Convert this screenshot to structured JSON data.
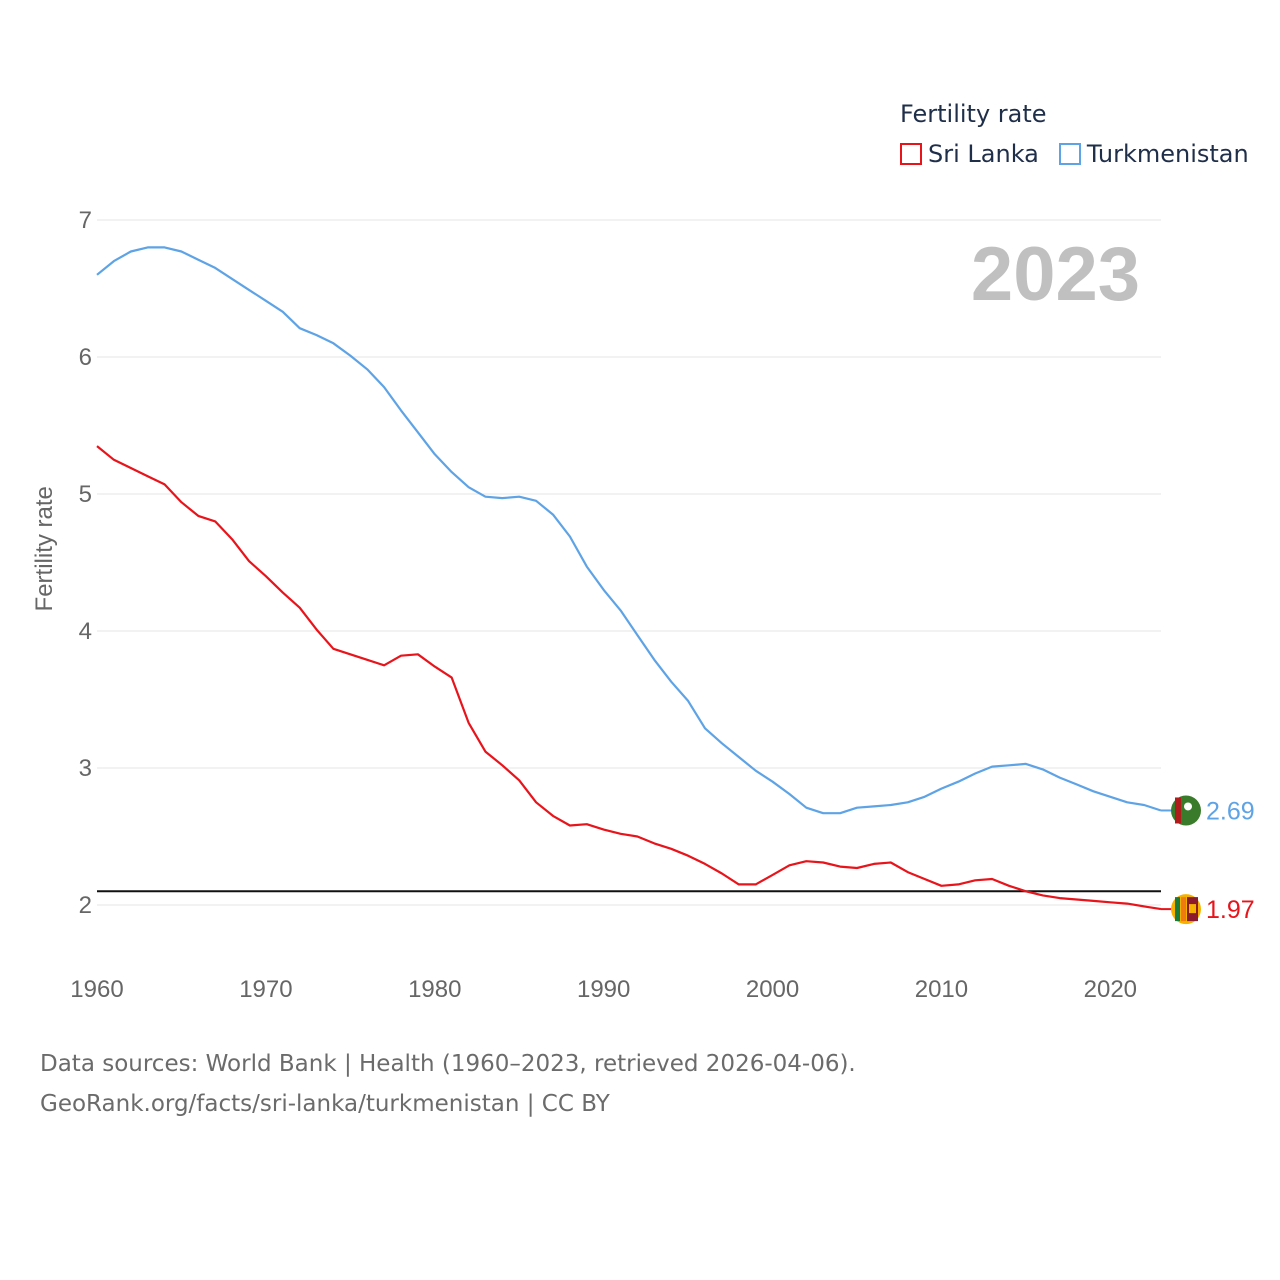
{
  "chart_data": {
    "type": "line",
    "title": "Fertility rate",
    "ylabel": "Fertility rate",
    "xlabel": "",
    "year_label": "2023",
    "xlim": [
      1960,
      2023
    ],
    "ylim": [
      1.5,
      7
    ],
    "x_ticks": [
      1960,
      1970,
      1980,
      1990,
      2000,
      2010,
      2020
    ],
    "y_ticks": [
      2,
      3,
      4,
      5,
      6,
      7
    ],
    "reference_line": 2.1,
    "x": [
      1960,
      1961,
      1962,
      1963,
      1964,
      1965,
      1966,
      1967,
      1968,
      1969,
      1970,
      1971,
      1972,
      1973,
      1974,
      1975,
      1976,
      1977,
      1978,
      1979,
      1980,
      1981,
      1982,
      1983,
      1984,
      1985,
      1986,
      1987,
      1988,
      1989,
      1990,
      1991,
      1992,
      1993,
      1994,
      1995,
      1996,
      1997,
      1998,
      1999,
      2000,
      2001,
      2002,
      2003,
      2004,
      2005,
      2006,
      2007,
      2008,
      2009,
      2010,
      2011,
      2012,
      2013,
      2014,
      2015,
      2016,
      2017,
      2018,
      2019,
      2020,
      2021,
      2022,
      2023
    ],
    "series": [
      {
        "name": "Sri Lanka",
        "color": "#e8141b",
        "end_label": "1.97",
        "flag": "sri-lanka-flag",
        "values": [
          5.35,
          5.25,
          5.19,
          5.13,
          5.07,
          4.94,
          4.84,
          4.8,
          4.67,
          4.51,
          4.4,
          4.28,
          4.17,
          4.01,
          3.87,
          3.83,
          3.79,
          3.75,
          3.82,
          3.83,
          3.74,
          3.66,
          3.33,
          3.12,
          3.02,
          2.91,
          2.75,
          2.65,
          2.58,
          2.59,
          2.55,
          2.52,
          2.5,
          2.45,
          2.41,
          2.36,
          2.3,
          2.23,
          2.15,
          2.15,
          2.22,
          2.29,
          2.32,
          2.31,
          2.28,
          2.27,
          2.3,
          2.31,
          2.24,
          2.19,
          2.14,
          2.15,
          2.18,
          2.19,
          2.14,
          2.1,
          2.07,
          2.05,
          2.04,
          2.03,
          2.02,
          2.01,
          1.99,
          1.97
        ]
      },
      {
        "name": "Turkmenistan",
        "color": "#5ea3e5",
        "end_label": "2.69",
        "flag": "turkmenistan-flag",
        "values": [
          6.6,
          6.7,
          6.77,
          6.8,
          6.8,
          6.77,
          6.71,
          6.65,
          6.57,
          6.49,
          6.41,
          6.33,
          6.21,
          6.16,
          6.1,
          6.01,
          5.91,
          5.78,
          5.61,
          5.45,
          5.29,
          5.16,
          5.05,
          4.98,
          4.97,
          4.98,
          4.95,
          4.85,
          4.69,
          4.47,
          4.3,
          4.15,
          3.97,
          3.79,
          3.63,
          3.49,
          3.29,
          3.18,
          3.08,
          2.98,
          2.9,
          2.81,
          2.71,
          2.67,
          2.67,
          2.71,
          2.72,
          2.73,
          2.75,
          2.79,
          2.85,
          2.9,
          2.96,
          3.01,
          3.02,
          3.03,
          2.99,
          2.93,
          2.88,
          2.83,
          2.79,
          2.75,
          2.73,
          2.69
        ]
      }
    ]
  },
  "legend": {
    "title": "Fertility rate",
    "items": [
      "Sri Lanka",
      "Turkmenistan"
    ]
  },
  "footer": {
    "sources": "Data sources: World Bank | Health (1960–2023, retrieved 2026-04-06).",
    "credit": "GeoRank.org/facts/sri-lanka/turkmenistan | CC BY"
  }
}
